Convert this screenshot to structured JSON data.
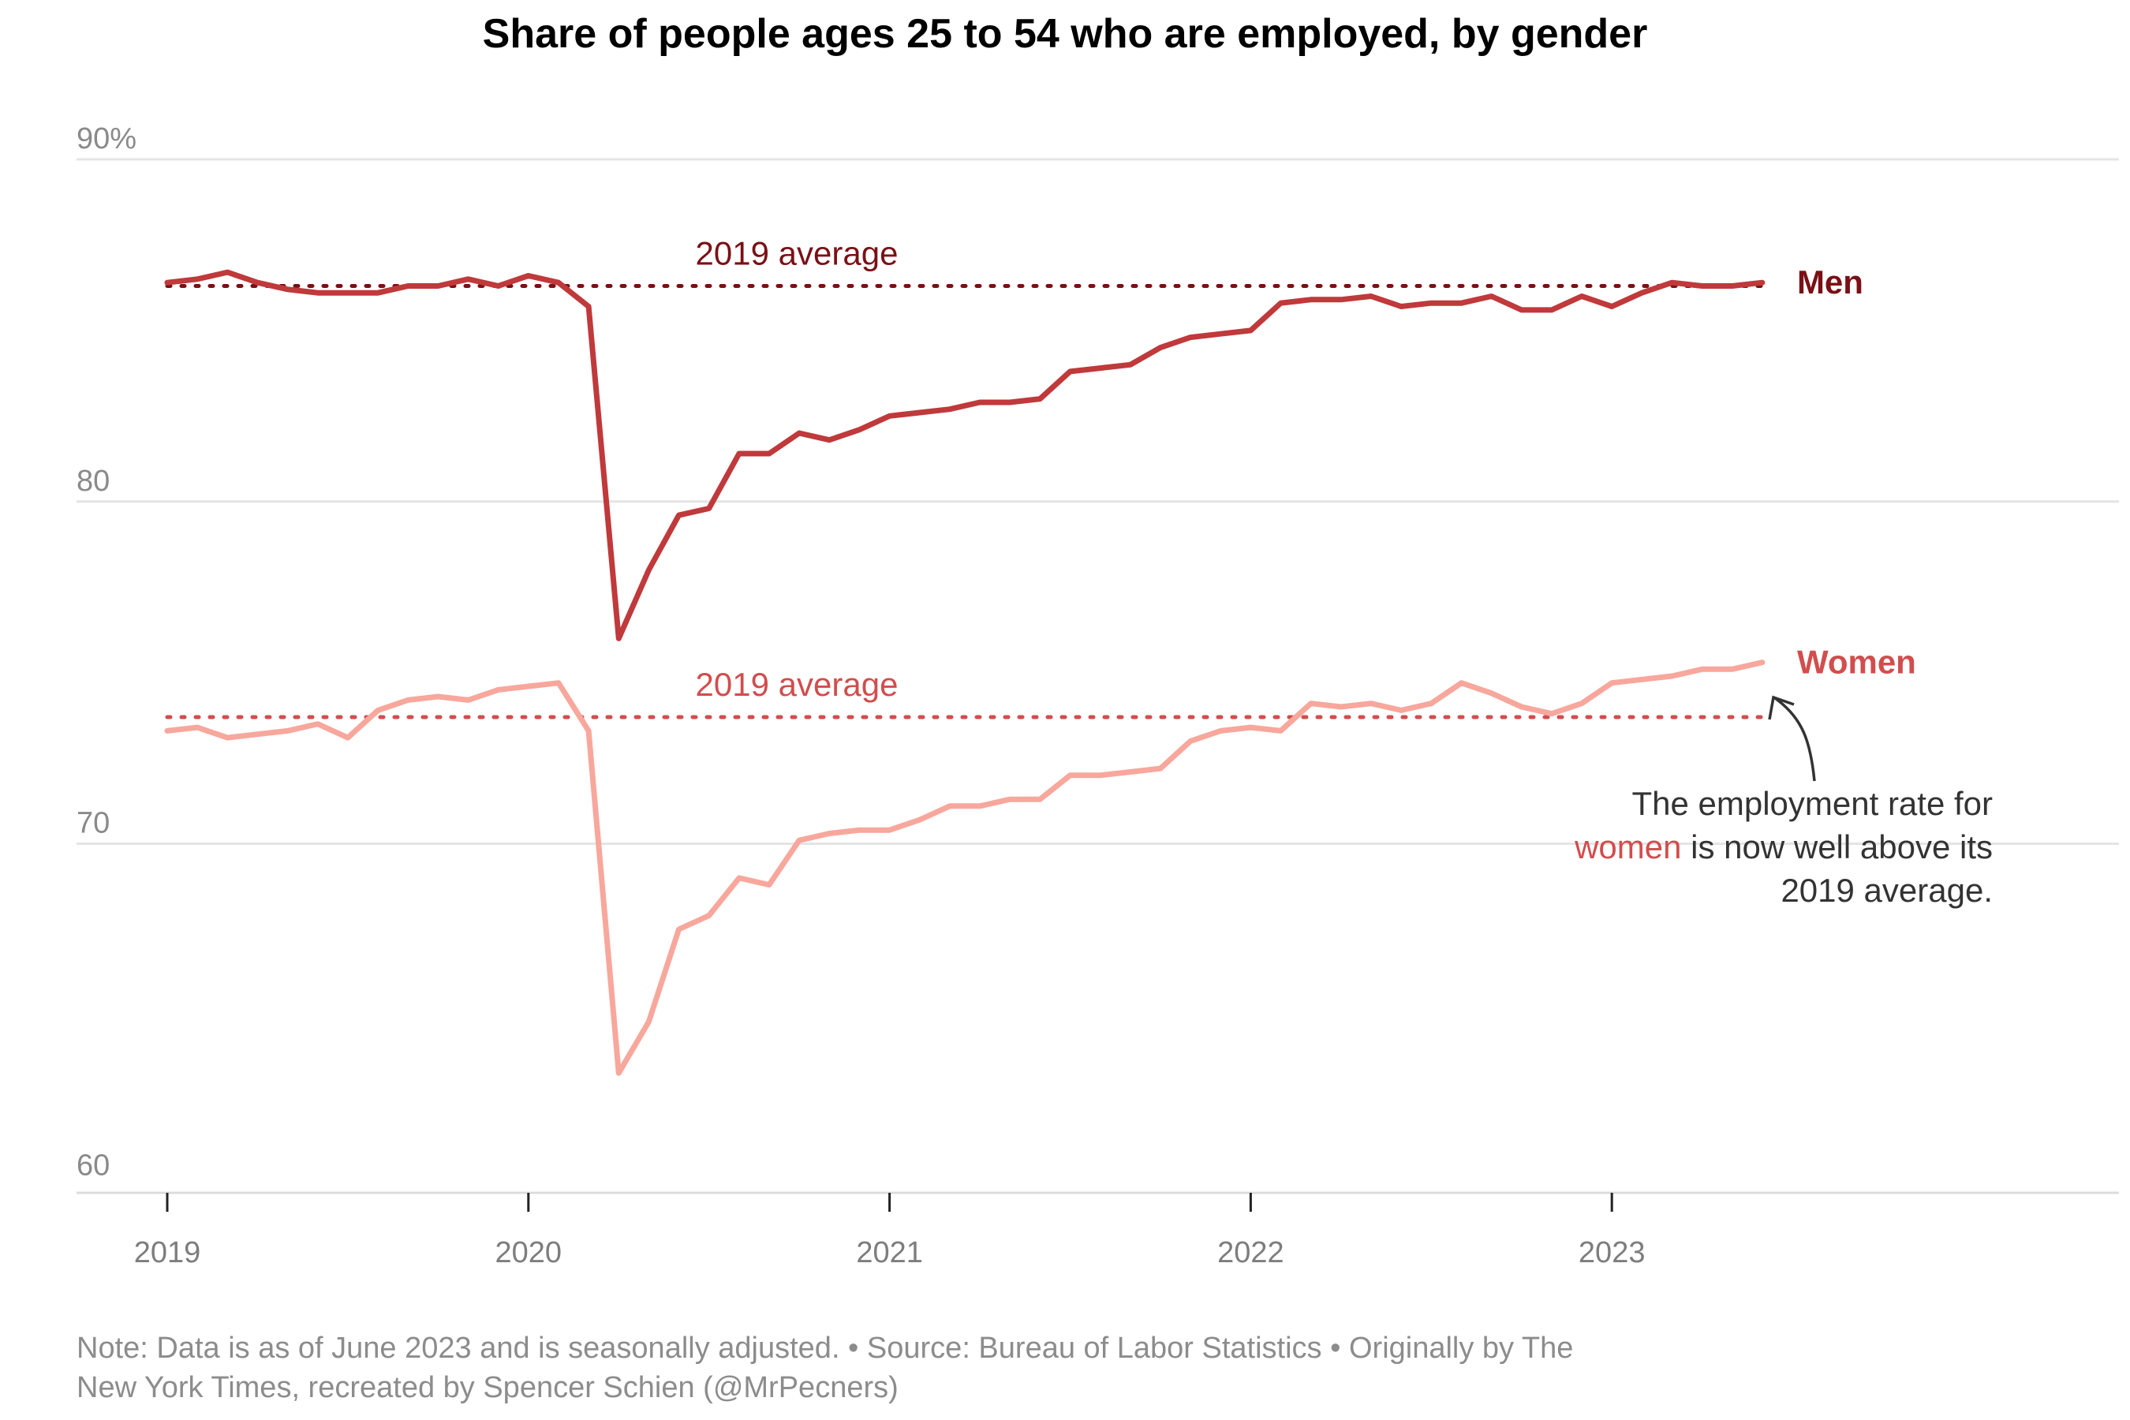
{
  "chart_data": {
    "type": "line",
    "title": "Share of people ages 25 to 54 who are employed, by gender",
    "x_ticks": [
      "2019",
      "2020",
      "2021",
      "2022",
      "2023"
    ],
    "y_ticks": [
      "90%",
      "80",
      "70",
      "60"
    ],
    "y_tick_values": [
      90,
      80,
      70,
      60
    ],
    "ylim": [
      59.8,
      90
    ],
    "xlim": [
      "2019-01",
      "2023-06"
    ],
    "grid": true,
    "series": [
      {
        "name": "Men",
        "color": "#c0393b",
        "label_color": "#7a1015",
        "values": [
          86.4,
          86.5,
          86.7,
          86.4,
          86.2,
          86.1,
          86.1,
          86.1,
          86.3,
          86.3,
          86.5,
          86.3,
          86.6,
          86.4,
          85.7,
          76.0,
          78.0,
          79.6,
          79.8,
          81.4,
          81.4,
          82.0,
          81.8,
          82.1,
          82.5,
          82.6,
          82.7,
          82.9,
          82.9,
          83.0,
          83.8,
          83.9,
          84.0,
          84.5,
          84.8,
          84.9,
          85.0,
          85.8,
          85.9,
          85.9,
          86.0,
          85.7,
          85.8,
          85.8,
          86.0,
          85.6,
          85.6,
          86.0,
          85.7,
          86.1,
          86.4,
          86.3,
          86.3,
          86.4
        ],
        "avg_2019": 86.3,
        "avg_label": "2019 average",
        "avg_color": "#7a1015"
      },
      {
        "name": "Women",
        "color": "#f8a79c",
        "label_color": "#d24d4d",
        "values": [
          73.3,
          73.4,
          73.1,
          73.2,
          73.3,
          73.5,
          73.1,
          73.9,
          74.2,
          74.3,
          74.2,
          74.5,
          74.6,
          74.7,
          73.3,
          63.3,
          64.8,
          67.5,
          67.9,
          69.0,
          68.8,
          70.1,
          70.3,
          70.4,
          70.4,
          70.7,
          71.1,
          71.1,
          71.3,
          71.3,
          72.0,
          72.0,
          72.1,
          72.2,
          73.0,
          73.3,
          73.4,
          73.3,
          74.1,
          74.0,
          74.1,
          73.9,
          74.1,
          74.7,
          74.4,
          74.0,
          73.8,
          74.1,
          74.7,
          74.8,
          74.9,
          75.1,
          75.1,
          75.3
        ],
        "avg_2019": 73.7,
        "avg_label": "2019 average",
        "avg_color": "#d24d4d"
      }
    ],
    "annotation": {
      "line1": "The employment rate for",
      "line2_highlight": "women",
      "line2_rest": " is now well above its",
      "line3": "2019 average.",
      "highlight_color": "#d24d4d"
    }
  },
  "footer": {
    "note_line1": "Note: Data is as of June 2023 and is seasonally adjusted. • Source: Bureau of Labor Statistics • Originally by The",
    "note_line2": "New York Times, recreated by Spencer Schien (@MrPecners)"
  }
}
